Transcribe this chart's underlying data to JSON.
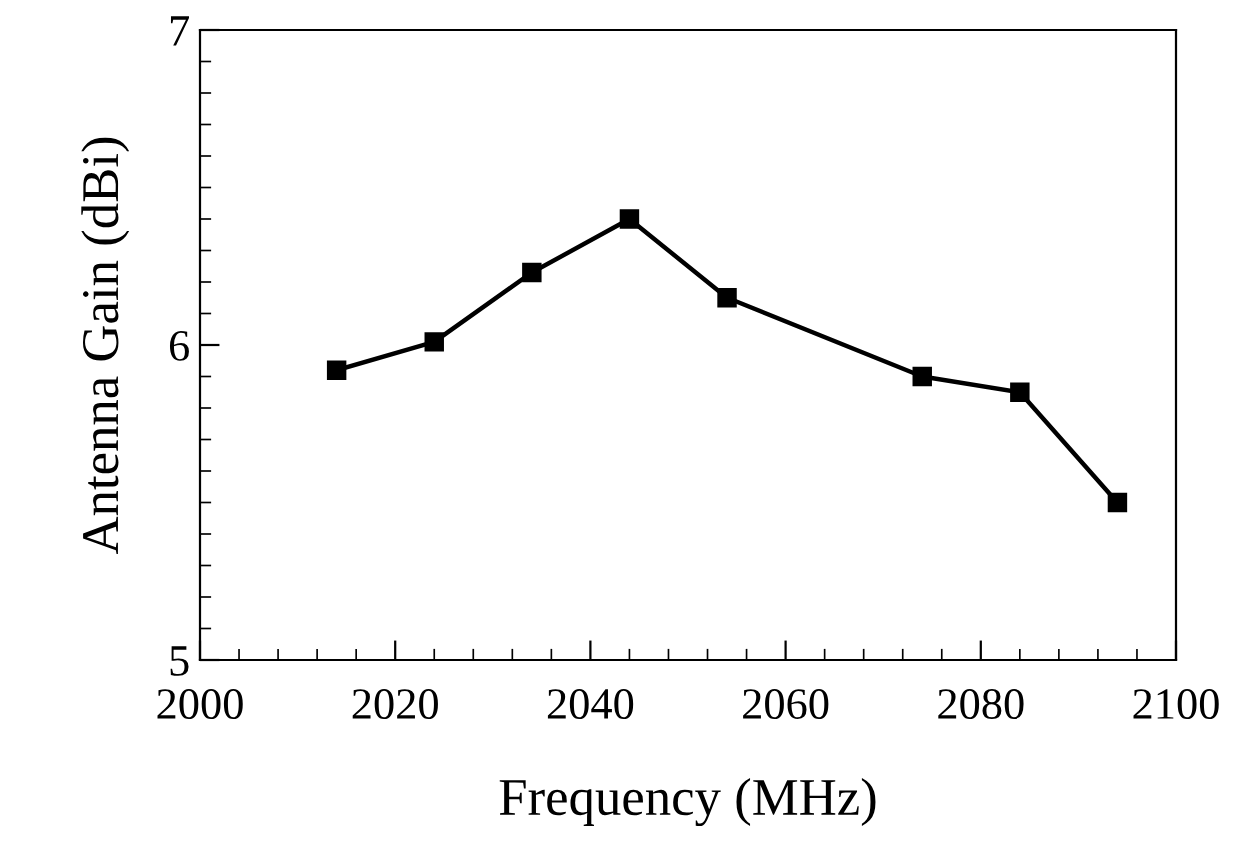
{
  "chart_data": {
    "type": "line",
    "xlabel": "Frequency (MHz)",
    "ylabel": "Antenna Gain (dBi)",
    "x": [
      2014,
      2024,
      2034,
      2044,
      2054,
      2074,
      2084,
      2094
    ],
    "series": [
      {
        "color": "#000000",
        "values": [
          5.92,
          6.01,
          6.23,
          6.4,
          6.15,
          5.9,
          5.85,
          5.5
        ]
      }
    ],
    "xlim": [
      2000,
      2100
    ],
    "xticks": [
      2000,
      2020,
      2040,
      2060,
      2080,
      2100
    ],
    "ylim": [
      5,
      7
    ],
    "yticks": [
      5,
      6,
      7
    ],
    "marker": "square",
    "line_style": "solid",
    "grid": false,
    "legend": false
  }
}
